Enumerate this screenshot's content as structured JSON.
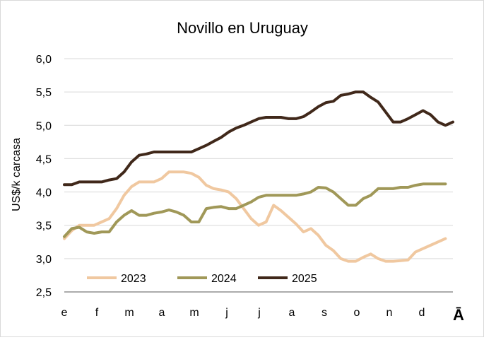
{
  "chart_data": {
    "type": "line",
    "title": "Novillo en Uruguay",
    "xlabel": "",
    "ylabel": "US$/k carcasa",
    "ylim": [
      2.5,
      6.0
    ],
    "yticks": [
      "2,5",
      "3,0",
      "3,5",
      "4,0",
      "4,5",
      "5,0",
      "5,5",
      "6,0"
    ],
    "ytick_values": [
      2.5,
      3.0,
      3.5,
      4.0,
      4.5,
      5.0,
      5.5,
      6.0
    ],
    "xtick_labels": [
      "e",
      "f",
      "m",
      "a",
      "m",
      "j",
      "j",
      "a",
      "s",
      "o",
      "n",
      "d",
      "Ā"
    ],
    "grid": true,
    "legend": "bottom-left inside",
    "series": [
      {
        "name": "2023",
        "color": "#F0C8A0",
        "values": [
          3.3,
          3.42,
          3.5,
          3.5,
          3.5,
          3.55,
          3.6,
          3.75,
          3.95,
          4.08,
          4.15,
          4.15,
          4.15,
          4.2,
          4.3,
          4.3,
          4.3,
          4.28,
          4.22,
          4.1,
          4.05,
          4.03,
          4.0,
          3.9,
          3.75,
          3.6,
          3.5,
          3.55,
          3.8,
          3.72,
          3.62,
          3.52,
          3.4,
          3.45,
          3.35,
          3.2,
          3.12,
          3.0,
          2.96,
          2.96,
          3.02,
          3.07,
          3.0,
          2.96,
          2.96,
          2.97,
          2.98,
          3.1,
          3.15,
          3.2,
          3.25,
          3.3
        ]
      },
      {
        "name": "2024",
        "color": "#A09858",
        "values": [
          3.33,
          3.45,
          3.47,
          3.4,
          3.38,
          3.4,
          3.4,
          3.55,
          3.65,
          3.72,
          3.65,
          3.65,
          3.68,
          3.7,
          3.73,
          3.7,
          3.65,
          3.55,
          3.55,
          3.75,
          3.77,
          3.78,
          3.75,
          3.75,
          3.8,
          3.85,
          3.92,
          3.95,
          3.95,
          3.95,
          3.95,
          3.95,
          3.97,
          4.0,
          4.07,
          4.06,
          4.0,
          3.9,
          3.8,
          3.8,
          3.9,
          3.95,
          4.05,
          4.05,
          4.05,
          4.07,
          4.07,
          4.1,
          4.12,
          4.12,
          4.12,
          4.12
        ]
      },
      {
        "name": "2025",
        "color": "#40281A",
        "values": [
          4.11,
          4.11,
          4.15,
          4.15,
          4.15,
          4.15,
          4.18,
          4.2,
          4.3,
          4.45,
          4.55,
          4.57,
          4.6,
          4.6,
          4.6,
          4.6,
          4.6,
          4.6,
          4.65,
          4.7,
          4.76,
          4.82,
          4.9,
          4.96,
          5.0,
          5.05,
          5.1,
          5.12,
          5.12,
          5.12,
          5.1,
          5.1,
          5.13,
          5.2,
          5.28,
          5.34,
          5.36,
          5.45,
          5.47,
          5.5,
          5.5,
          5.42,
          5.35,
          5.2,
          5.05,
          5.05,
          5.1,
          5.16,
          5.22,
          5.16,
          5.05,
          5.0,
          5.05
        ]
      }
    ]
  }
}
